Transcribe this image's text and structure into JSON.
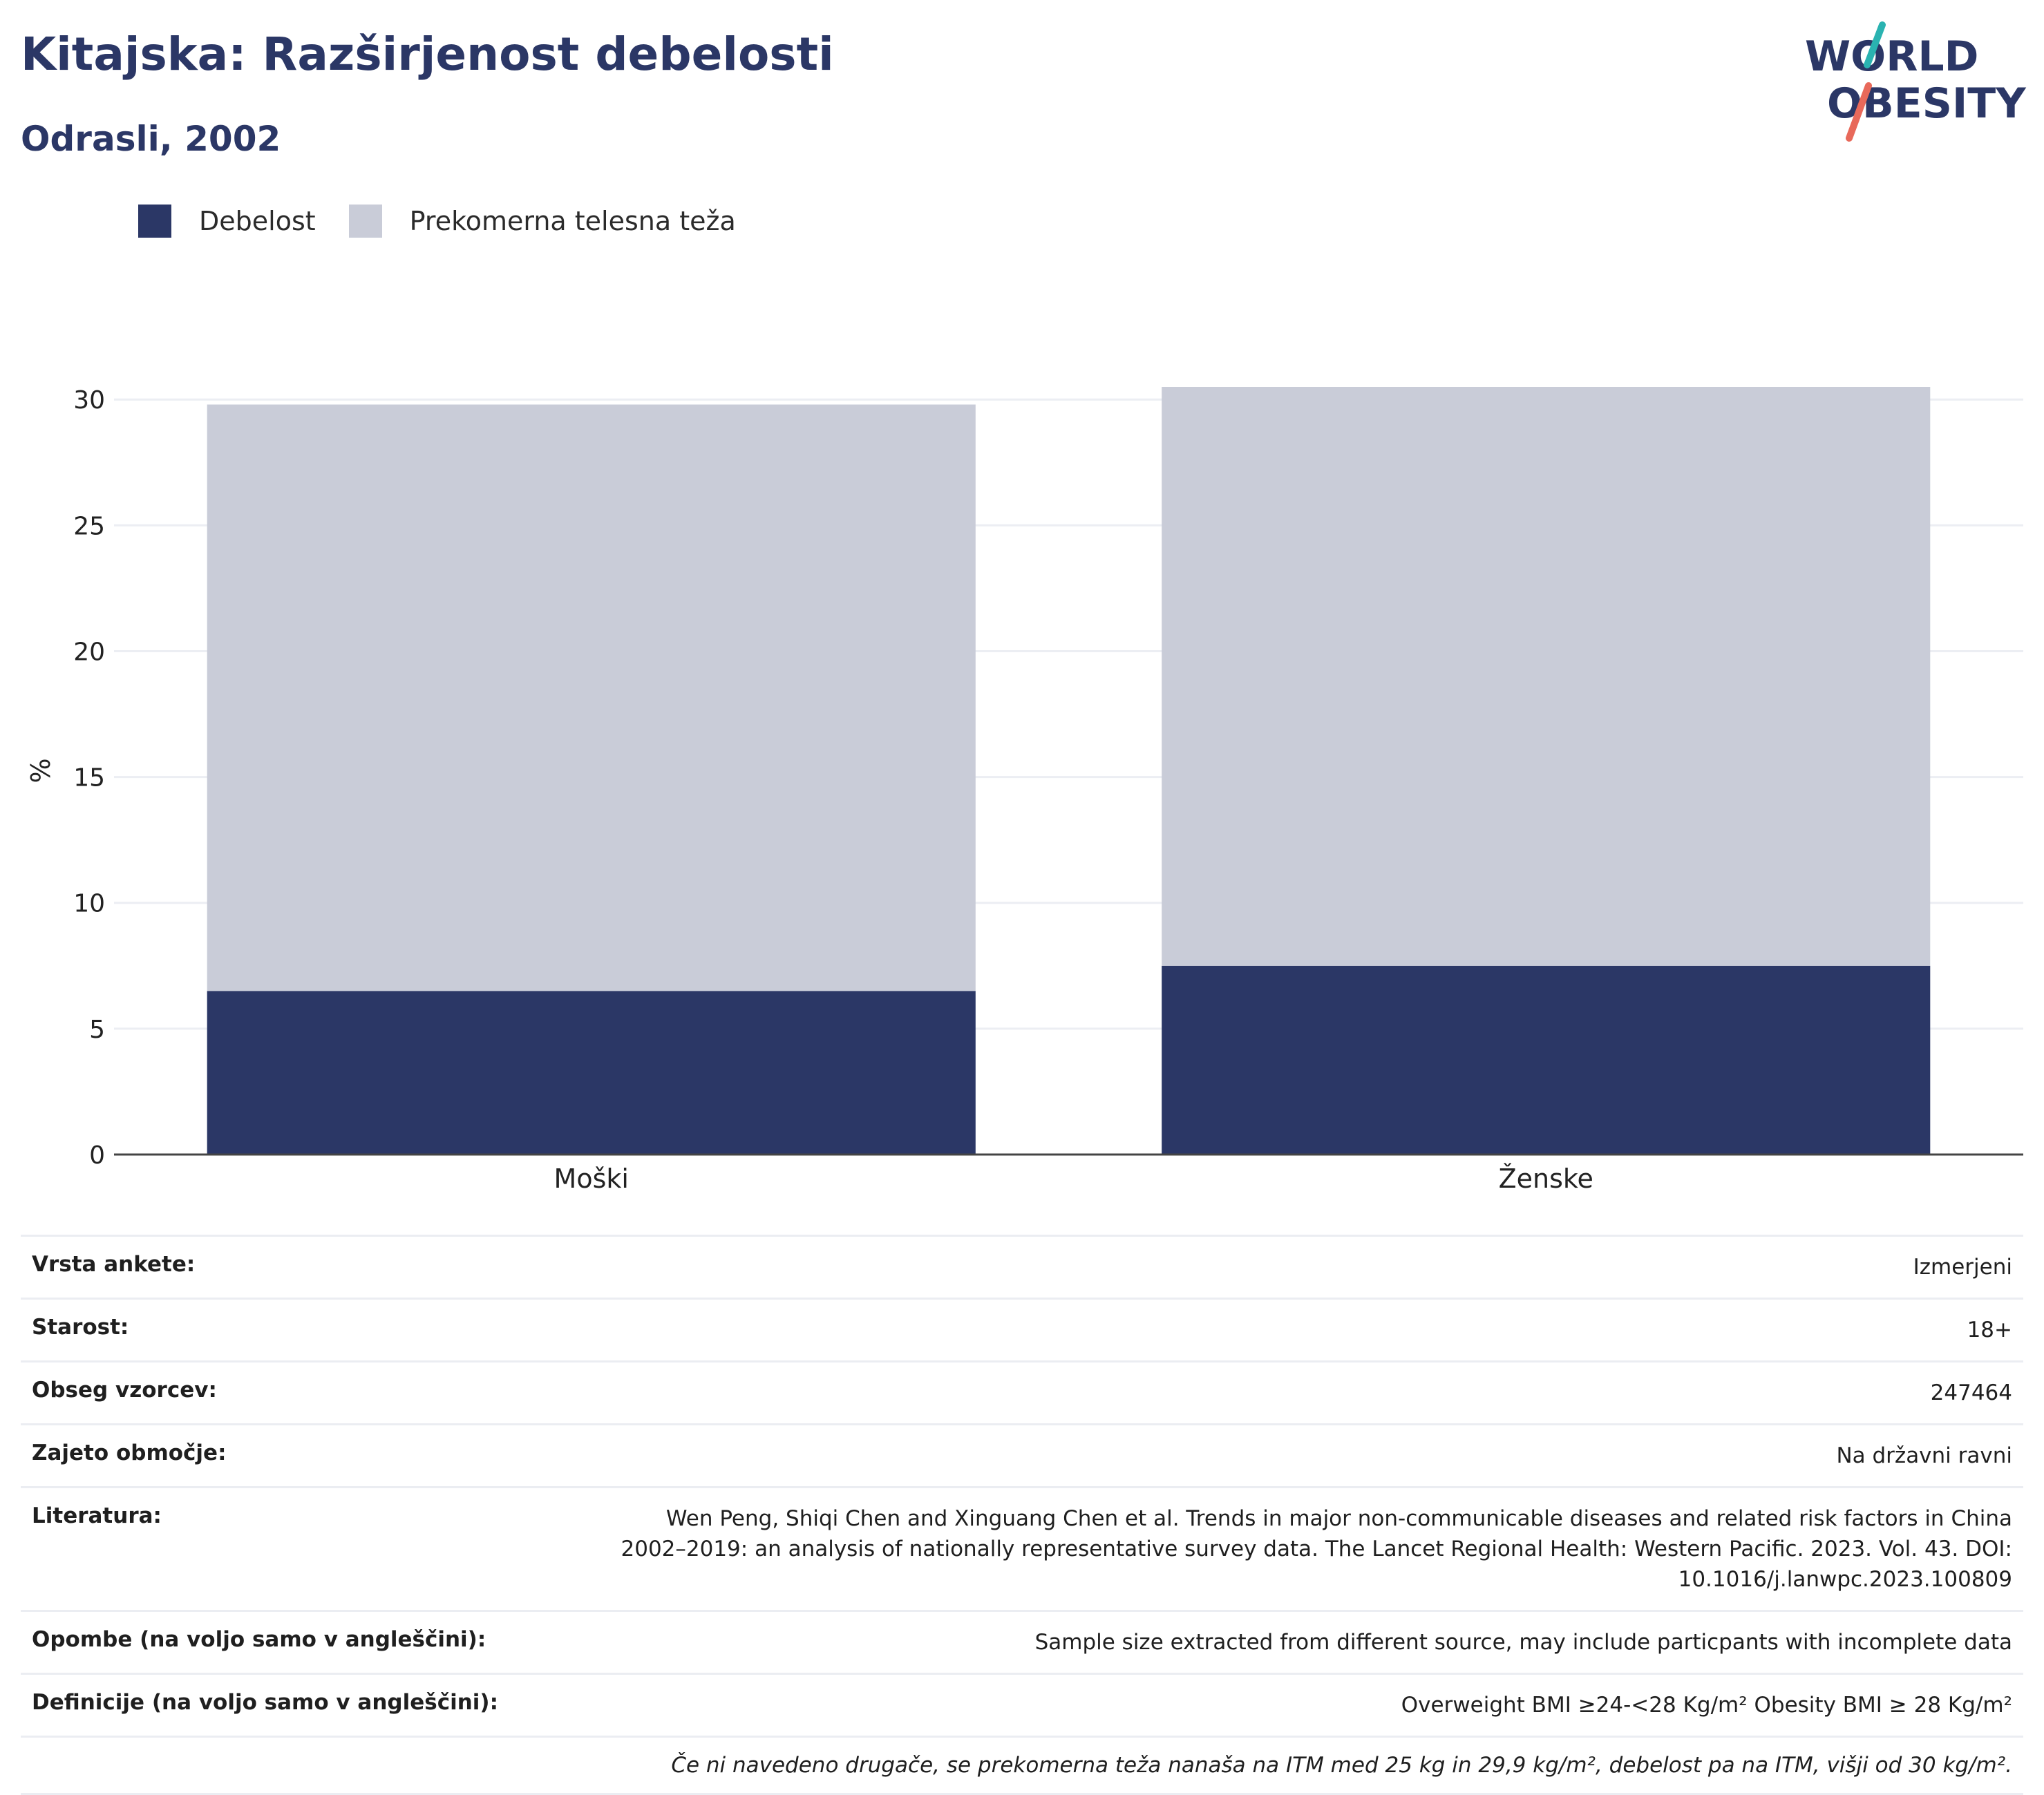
{
  "header": {
    "title": "Kitajska: Razširjenost debelosti",
    "subtitle": "Odrasli, 2002",
    "logo_line1": "WORLD",
    "logo_line2": "OBESITY"
  },
  "colors": {
    "obesity": "#2b3766",
    "overweight": "#c9ccd8",
    "logo_text": "#2b3766",
    "logo_teal": "#2ab3b1",
    "logo_coral": "#e8695a"
  },
  "legend": {
    "items": [
      {
        "label": "Debelost",
        "color": "#2b3766"
      },
      {
        "label": "Prekomerna telesna teža",
        "color": "#c9ccd8"
      }
    ],
    "placement": "top-left"
  },
  "chart_data": {
    "type": "bar",
    "stacked": true,
    "categories": [
      "Moški",
      "Ženske"
    ],
    "series": [
      {
        "name": "Debelost",
        "values": [
          6.5,
          7.5
        ]
      },
      {
        "name": "Prekomerna telesna teža",
        "values": [
          23.3,
          23.0
        ]
      }
    ],
    "ylabel": "%",
    "ylim": [
      0,
      30.5
    ],
    "yticks": [
      0,
      5,
      10,
      15,
      20,
      25,
      30
    ],
    "grid": true
  },
  "info": {
    "rows": [
      {
        "label": "Vrsta ankete:",
        "value": "Izmerjeni"
      },
      {
        "label": "Starost:",
        "value": "18+"
      },
      {
        "label": "Obseg vzorcev:",
        "value": "247464"
      },
      {
        "label": "Zajeto območje:",
        "value": "Na državni ravni"
      },
      {
        "label": "Literatura:",
        "value_lines": [
          "Wen Peng, Shiqi Chen and Xinguang Chen et al. Trends in major non-communicable diseases and related risk factors in China",
          "2002–2019: an analysis of nationally representative survey data. The Lancet Regional Health: Western Pacific. 2023. Vol. 43. DOI:",
          "10.1016/j.lanwpc.2023.100809"
        ]
      },
      {
        "label": "Opombe (na voljo samo v angleščini):",
        "value": "Sample size extracted from different source, may include particpants with incomplete data"
      },
      {
        "label": "Definicije (na voljo samo v angleščini):",
        "value": "Overweight BMI ≥24-<28 Kg/m² Obesity BMI ≥ 28 Kg/m²"
      }
    ],
    "footnote": "Če ni navedeno drugače, se prekomerna teža nanaša na ITM med 25 kg in 29,9 kg/m², debelost pa na ITM, višji od 30 kg/m²."
  }
}
